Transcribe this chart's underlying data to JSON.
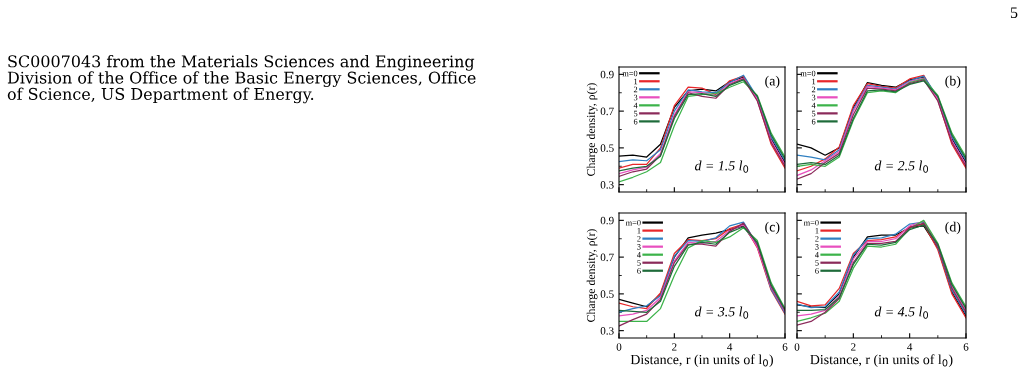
{
  "chart_data": [
    {
      "type": "line",
      "ylabel": "Charge density, ρ(r)",
      "annotations": [
        "(a)",
        "d = 1.5 l$_{0}$",
        "5",
        "SC0007043 from the Materials Sciences and Engineering\nDivision of the Office of the Basic Energy Sciences, Office\nof Science, US Department of Energy."
      ],
      "x": [
        0,
        0.5,
        1,
        1.5,
        2,
        2.5,
        3,
        3.5,
        4,
        4.5,
        5,
        5.5,
        6
      ],
      "xlim": [
        0,
        6
      ],
      "xticks": [
        0,
        2,
        4,
        6
      ],
      "ylim": [
        0.26,
        0.94
      ],
      "yticks": [
        0.3,
        0.5,
        0.7,
        0.9
      ],
      "tick_labels": "y",
      "legend": "top left",
      "line_style": "solid",
      "marker": "none",
      "grid": false,
      "series": [
        {
          "name": "m=0",
          "color": "#000000",
          "values": [
            0.455,
            0.46,
            0.45,
            0.52,
            0.72,
            0.81,
            0.82,
            0.81,
            0.86,
            0.885,
            0.77,
            0.55,
            0.42
          ]
        },
        {
          "name": "1",
          "color": "#e8262a",
          "values": [
            0.39,
            0.41,
            0.41,
            0.5,
            0.73,
            0.83,
            0.825,
            0.79,
            0.865,
            0.89,
            0.76,
            0.52,
            0.39
          ]
        },
        {
          "name": "2",
          "color": "#2f7fc1",
          "values": [
            0.425,
            0.435,
            0.43,
            0.49,
            0.7,
            0.815,
            0.805,
            0.8,
            0.855,
            0.895,
            0.775,
            0.56,
            0.43
          ]
        },
        {
          "name": "3",
          "color": "#e84fbf",
          "values": [
            0.36,
            0.38,
            0.395,
            0.47,
            0.68,
            0.805,
            0.8,
            0.785,
            0.85,
            0.88,
            0.765,
            0.54,
            0.41
          ]
        },
        {
          "name": "4",
          "color": "#3cb34a",
          "values": [
            0.315,
            0.34,
            0.37,
            0.42,
            0.62,
            0.78,
            0.79,
            0.795,
            0.83,
            0.86,
            0.785,
            0.58,
            0.45
          ]
        },
        {
          "name": "5",
          "color": "#8b2a5a",
          "values": [
            0.345,
            0.37,
            0.385,
            0.46,
            0.67,
            0.8,
            0.78,
            0.77,
            0.845,
            0.875,
            0.755,
            0.53,
            0.4
          ]
        },
        {
          "name": "6",
          "color": "#1e6b3a",
          "values": [
            0.375,
            0.39,
            0.4,
            0.455,
            0.66,
            0.79,
            0.795,
            0.78,
            0.84,
            0.87,
            0.78,
            0.57,
            0.44
          ]
        }
      ]
    },
    {
      "type": "line",
      "annotations": [
        "(b)",
        "d = 2.5 l$_{0}$"
      ],
      "x": [
        0,
        0.5,
        1,
        1.5,
        2,
        2.5,
        3,
        3.5,
        4,
        4.5,
        5,
        5.5,
        6
      ],
      "xlim": [
        0,
        6
      ],
      "xticks": [
        0,
        2,
        4,
        6
      ],
      "ylim": [
        0.26,
        0.94
      ],
      "yticks": [
        0.3,
        0.5,
        0.7,
        0.9
      ],
      "tick_labels": false,
      "legend": "top left",
      "line_style": "solid",
      "marker": "none",
      "grid": false,
      "series": [
        {
          "name": "m=0",
          "color": "#000000",
          "values": [
            0.52,
            0.5,
            0.46,
            0.5,
            0.72,
            0.855,
            0.84,
            0.83,
            0.87,
            0.885,
            0.77,
            0.55,
            0.42
          ]
        },
        {
          "name": "1",
          "color": "#e8262a",
          "values": [
            0.375,
            0.4,
            0.44,
            0.505,
            0.73,
            0.85,
            0.835,
            0.825,
            0.875,
            0.895,
            0.76,
            0.52,
            0.39
          ]
        },
        {
          "name": "2",
          "color": "#2f7fc1",
          "values": [
            0.46,
            0.45,
            0.435,
            0.49,
            0.71,
            0.84,
            0.83,
            0.82,
            0.865,
            0.89,
            0.775,
            0.56,
            0.43
          ]
        },
        {
          "name": "3",
          "color": "#e84fbf",
          "values": [
            0.35,
            0.38,
            0.43,
            0.48,
            0.7,
            0.835,
            0.825,
            0.815,
            0.86,
            0.88,
            0.765,
            0.54,
            0.41
          ]
        },
        {
          "name": "4",
          "color": "#3cb34a",
          "values": [
            0.4,
            0.41,
            0.4,
            0.45,
            0.65,
            0.8,
            0.81,
            0.8,
            0.855,
            0.875,
            0.785,
            0.58,
            0.45
          ]
        },
        {
          "name": "5",
          "color": "#8b2a5a",
          "values": [
            0.33,
            0.36,
            0.42,
            0.47,
            0.68,
            0.825,
            0.82,
            0.81,
            0.85,
            0.87,
            0.755,
            0.53,
            0.4
          ]
        },
        {
          "name": "6",
          "color": "#1e6b3a",
          "values": [
            0.41,
            0.42,
            0.41,
            0.46,
            0.66,
            0.81,
            0.815,
            0.805,
            0.845,
            0.865,
            0.78,
            0.57,
            0.44
          ]
        }
      ]
    },
    {
      "type": "line",
      "xlabel": "Distance, r (in units of l$_{0}$)",
      "ylabel": "Charge density, ρ(r)",
      "annotations": [
        "(c)",
        "d = 3.5 l$_{0}$"
      ],
      "x": [
        0,
        0.5,
        1,
        1.5,
        2,
        2.5,
        3,
        3.5,
        4,
        4.5,
        5,
        5.5,
        6
      ],
      "xlim": [
        0,
        6
      ],
      "xticks": [
        0,
        2,
        4,
        6
      ],
      "ylim": [
        0.26,
        0.94
      ],
      "yticks": [
        0.3,
        0.5,
        0.7,
        0.9
      ],
      "legend": "top left",
      "line_style": "solid",
      "marker": "none",
      "grid": false,
      "series": [
        {
          "name": "m=0",
          "color": "#000000",
          "values": [
            0.47,
            0.45,
            0.43,
            0.5,
            0.7,
            0.805,
            0.82,
            0.83,
            0.85,
            0.87,
            0.76,
            0.53,
            0.4
          ]
        },
        {
          "name": "1",
          "color": "#e8262a",
          "values": [
            0.45,
            0.43,
            0.42,
            0.505,
            0.72,
            0.795,
            0.79,
            0.8,
            0.855,
            0.88,
            0.75,
            0.52,
            0.39
          ]
        },
        {
          "name": "2",
          "color": "#2f7fc1",
          "values": [
            0.4,
            0.42,
            0.435,
            0.49,
            0.705,
            0.79,
            0.785,
            0.805,
            0.87,
            0.89,
            0.765,
            0.525,
            0.395
          ]
        },
        {
          "name": "3",
          "color": "#e84fbf",
          "values": [
            0.38,
            0.39,
            0.41,
            0.48,
            0.68,
            0.78,
            0.775,
            0.785,
            0.845,
            0.875,
            0.755,
            0.535,
            0.405
          ]
        },
        {
          "name": "4",
          "color": "#3cb34a",
          "values": [
            0.35,
            0.35,
            0.35,
            0.42,
            0.6,
            0.75,
            0.79,
            0.78,
            0.81,
            0.86,
            0.79,
            0.56,
            0.42
          ]
        },
        {
          "name": "5",
          "color": "#8b2a5a",
          "values": [
            0.325,
            0.36,
            0.39,
            0.47,
            0.67,
            0.77,
            0.77,
            0.76,
            0.84,
            0.885,
            0.77,
            0.54,
            0.41
          ]
        },
        {
          "name": "6",
          "color": "#1e6b3a",
          "values": [
            0.41,
            0.405,
            0.4,
            0.46,
            0.65,
            0.765,
            0.78,
            0.77,
            0.835,
            0.865,
            0.78,
            0.55,
            0.415
          ]
        }
      ]
    },
    {
      "type": "line",
      "xlabel": "Distance, r (in units of l$_{0}$)",
      "annotations": [
        "(d)",
        "d = 4.5 l$_{0}$"
      ],
      "x": [
        0,
        0.5,
        1,
        1.5,
        2,
        2.5,
        3,
        3.5,
        4,
        4.5,
        5,
        5.5,
        6
      ],
      "xlim": [
        0,
        6
      ],
      "xticks": [
        0,
        2,
        4,
        6
      ],
      "ylim": [
        0.26,
        0.94
      ],
      "yticks": [
        0.3,
        0.5,
        0.7,
        0.9
      ],
      "tick_labels": "x",
      "legend": "top left",
      "line_style": "solid",
      "marker": "none",
      "grid": false,
      "series": [
        {
          "name": "m=0",
          "color": "#000000",
          "values": [
            0.44,
            0.43,
            0.425,
            0.5,
            0.7,
            0.81,
            0.82,
            0.82,
            0.86,
            0.87,
            0.75,
            0.51,
            0.38
          ]
        },
        {
          "name": "1",
          "color": "#e8262a",
          "values": [
            0.46,
            0.435,
            0.44,
            0.53,
            0.72,
            0.79,
            0.795,
            0.81,
            0.865,
            0.88,
            0.74,
            0.5,
            0.37
          ]
        },
        {
          "name": "2",
          "color": "#2f7fc1",
          "values": [
            0.445,
            0.425,
            0.43,
            0.51,
            0.71,
            0.8,
            0.805,
            0.825,
            0.88,
            0.89,
            0.755,
            0.52,
            0.39
          ]
        },
        {
          "name": "3",
          "color": "#e84fbf",
          "values": [
            0.38,
            0.39,
            0.41,
            0.49,
            0.69,
            0.785,
            0.785,
            0.8,
            0.87,
            0.895,
            0.765,
            0.54,
            0.41
          ]
        },
        {
          "name": "4",
          "color": "#3cb34a",
          "values": [
            0.35,
            0.37,
            0.395,
            0.46,
            0.64,
            0.76,
            0.755,
            0.77,
            0.855,
            0.9,
            0.775,
            0.56,
            0.43
          ]
        },
        {
          "name": "5",
          "color": "#8b2a5a",
          "values": [
            0.33,
            0.35,
            0.4,
            0.475,
            0.67,
            0.775,
            0.775,
            0.785,
            0.86,
            0.885,
            0.76,
            0.53,
            0.4
          ]
        },
        {
          "name": "6",
          "color": "#1e6b3a",
          "values": [
            0.41,
            0.41,
            0.415,
            0.48,
            0.66,
            0.77,
            0.765,
            0.78,
            0.85,
            0.875,
            0.77,
            0.55,
            0.42
          ]
        }
      ]
    }
  ]
}
